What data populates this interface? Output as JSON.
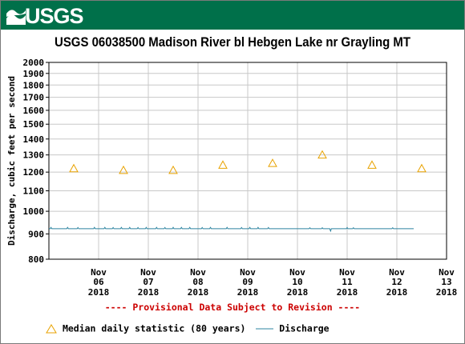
{
  "header": {
    "logo_text": "USGS",
    "title": "USGS 06038500 Madison River bl Hebgen Lake nr Grayling MT",
    "banner_color": "#00704a"
  },
  "notice": "---- Provisional Data Subject to Revision ----",
  "legend": {
    "median_label": "Median daily statistic (80 years)",
    "discharge_label": "Discharge"
  },
  "chart_data": {
    "type": "line",
    "ylabel": "Discharge, cubic feet per second",
    "y_scale": "log",
    "ylim": [
      800,
      2000
    ],
    "y_ticks": [
      800,
      900,
      1000,
      1100,
      1200,
      1300,
      1400,
      1500,
      1600,
      1700,
      1800,
      1900,
      2000
    ],
    "x_ticks": [
      {
        "month": "Nov",
        "day": "06",
        "year": "2018"
      },
      {
        "month": "Nov",
        "day": "07",
        "year": "2018"
      },
      {
        "month": "Nov",
        "day": "08",
        "year": "2018"
      },
      {
        "month": "Nov",
        "day": "09",
        "year": "2018"
      },
      {
        "month": "Nov",
        "day": "10",
        "year": "2018"
      },
      {
        "month": "Nov",
        "day": "11",
        "year": "2018"
      },
      {
        "month": "Nov",
        "day": "12",
        "year": "2018"
      },
      {
        "month": "Nov",
        "day": "13",
        "year": "2018"
      }
    ],
    "grid": true,
    "median_daily": [
      1220,
      1210,
      1210,
      1240,
      1250,
      1300,
      1240,
      1220
    ],
    "discharge_series": {
      "color": "#2c84a0",
      "base_value": 922,
      "x_start": "2018-11-05",
      "x_end": "2018-11-13",
      "blips": [
        [
          "2018-11-05T01:00",
          928
        ],
        [
          "2018-11-05T09:00",
          928
        ],
        [
          "2018-11-05T14:00",
          927
        ],
        [
          "2018-11-05T22:00",
          928
        ],
        [
          "2018-11-06T03:00",
          928
        ],
        [
          "2018-11-06T07:00",
          927
        ],
        [
          "2018-11-06T11:00",
          928
        ],
        [
          "2018-11-06T15:00",
          928
        ],
        [
          "2018-11-06T19:00",
          927
        ],
        [
          "2018-11-06T23:00",
          928
        ],
        [
          "2018-11-07T04:00",
          928
        ],
        [
          "2018-11-07T08:00",
          927
        ],
        [
          "2018-11-07T12:00",
          928
        ],
        [
          "2018-11-07T16:00",
          928
        ],
        [
          "2018-11-07T20:00",
          928
        ],
        [
          "2018-11-08T02:00",
          927
        ],
        [
          "2018-11-08T06:00",
          928
        ],
        [
          "2018-11-08T14:00",
          928
        ],
        [
          "2018-11-08T21:00",
          927
        ],
        [
          "2018-11-09T01:00",
          928
        ],
        [
          "2018-11-09T05:00",
          928
        ],
        [
          "2018-11-09T10:00",
          927
        ],
        [
          "2018-11-10T06:00",
          926
        ],
        [
          "2018-11-10T12:00",
          926
        ],
        [
          "2018-11-10T16:00",
          912
        ],
        [
          "2018-11-11T00:00",
          927
        ],
        [
          "2018-11-11T03:00",
          926
        ],
        [
          "2018-11-11T22:00",
          926
        ]
      ]
    },
    "median_color": "#e8a200"
  }
}
